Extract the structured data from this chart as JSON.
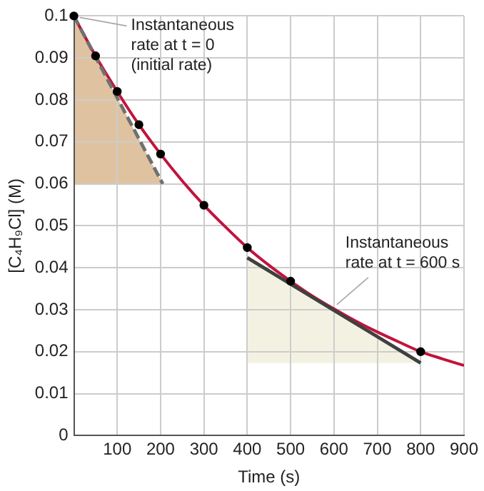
{
  "chart_data": {
    "type": "line",
    "xlabel": "Time (s)",
    "ylabel": "[C₄H₉Cl] (M)",
    "xlim": [
      0,
      900
    ],
    "xticks": [
      100,
      200,
      300,
      400,
      500,
      600,
      700,
      800,
      900
    ],
    "ylim": [
      0,
      0.1
    ],
    "yticks": [
      0,
      0.01,
      0.02,
      0.03,
      0.04,
      0.05,
      0.06,
      0.07,
      0.08,
      0.09,
      0.1
    ],
    "grid": true,
    "legend": false,
    "series": [
      {
        "color": "#c0143c",
        "marker": "none",
        "x": [
          0,
          50,
          100,
          150,
          200,
          250,
          300,
          350,
          400,
          450,
          500,
          550,
          600,
          650,
          700,
          750,
          800,
          850,
          900
        ],
        "values": [
          0.1,
          0.0905,
          0.082,
          0.0741,
          0.0671,
          0.0607,
          0.0549,
          0.0497,
          0.0448,
          0.0406,
          0.0368,
          0.0333,
          0.0302,
          0.0273,
          0.0247,
          0.0223,
          0.02,
          0.0183,
          0.0167
        ]
      },
      {
        "type": "scatter",
        "color": "#000000",
        "marker": "circle",
        "x": [
          0,
          50,
          100,
          150,
          200,
          300,
          400,
          500,
          800
        ],
        "values": [
          0.1,
          0.0905,
          0.082,
          0.0741,
          0.0671,
          0.0549,
          0.0448,
          0.0368,
          0.02
        ]
      },
      {
        "type": "line",
        "color": "#707070",
        "marker": "none",
        "line_style": "dashed",
        "x": [
          0,
          205
        ],
        "values": [
          0.1,
          0.06
        ]
      },
      {
        "type": "line",
        "color": "#404040",
        "marker": "none",
        "line_style": "solid",
        "x": [
          400,
          800
        ],
        "values": [
          0.0424,
          0.0173
        ]
      }
    ],
    "annotations": [
      {
        "text": "Instantaneous rate at t = 0 (initial rate)",
        "x": 0,
        "y": 0.1
      },
      {
        "text": "Instantaneous rate at t = 600 s",
        "x": 600,
        "y": 0.0302
      }
    ]
  }
}
